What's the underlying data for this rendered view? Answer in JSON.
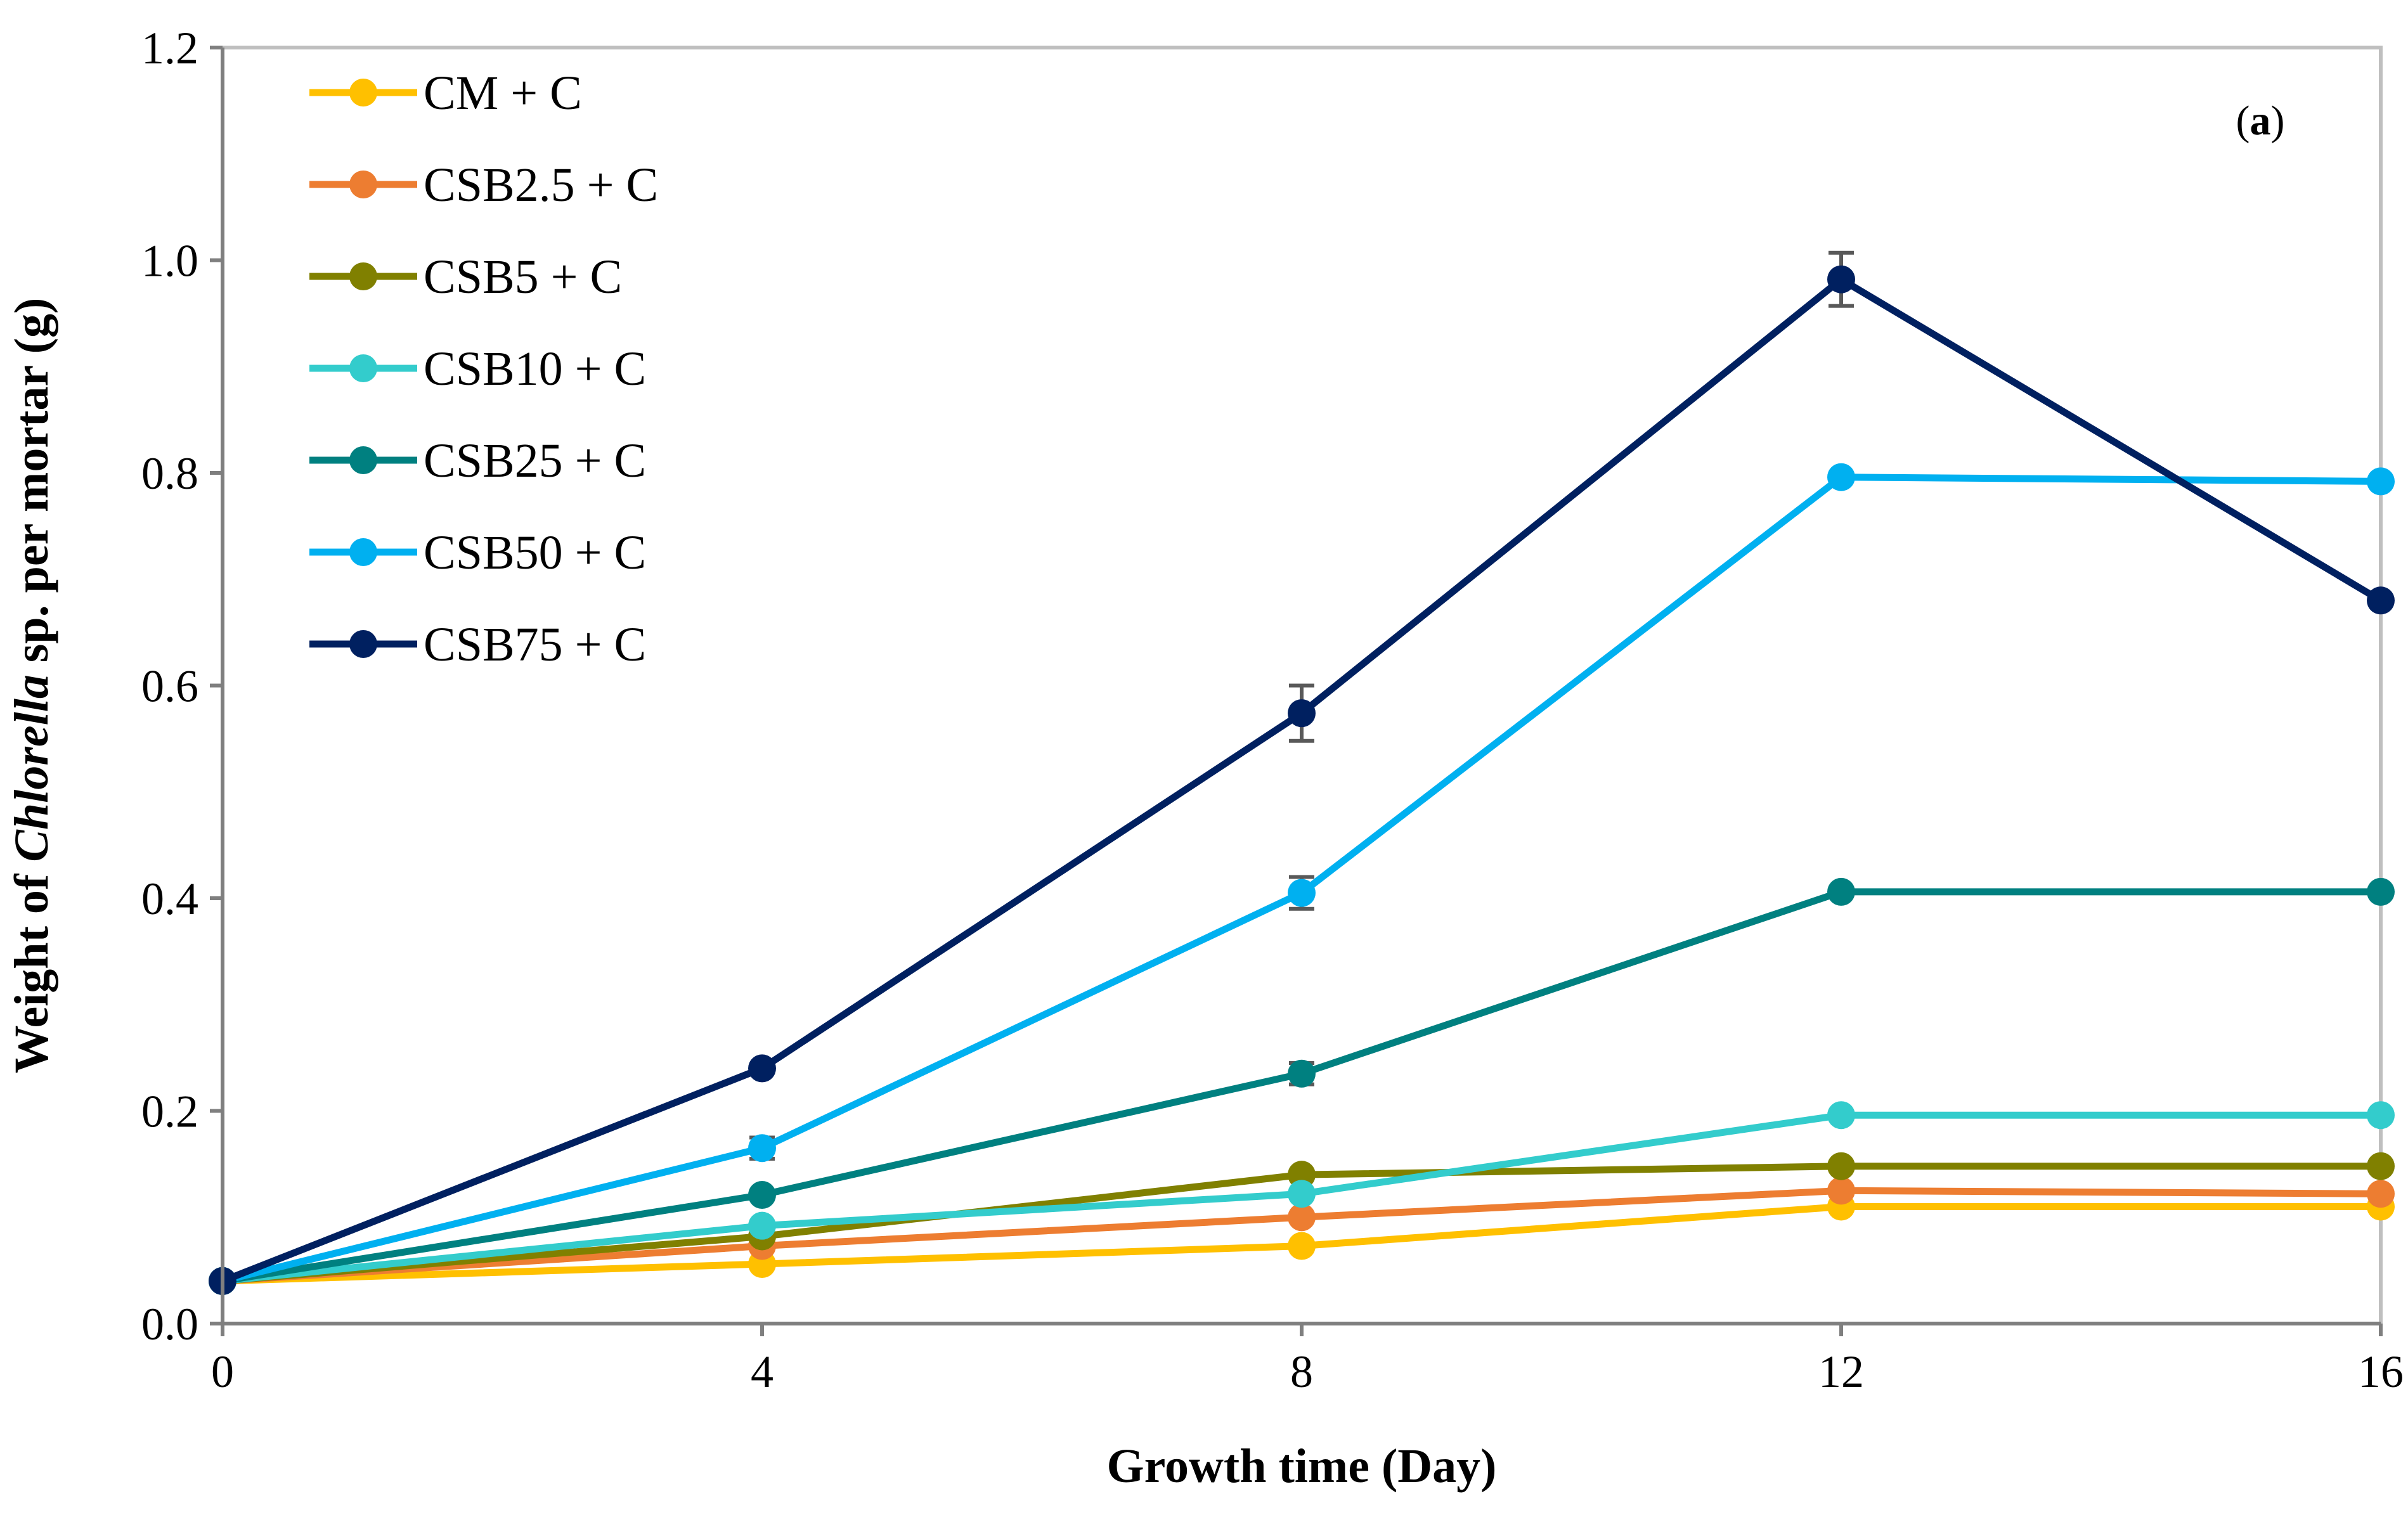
{
  "chart_data": {
    "type": "line",
    "panel_label": "a",
    "xlabel": "Growth time (Day)",
    "ylabel": {
      "prefix": "Weight of ",
      "italic": "Chlorella",
      "suffix": " sp. per mortar (g)"
    },
    "x": [
      0,
      4,
      8,
      12,
      16
    ],
    "xlim": [
      0,
      16
    ],
    "xticks": [
      "0",
      "4",
      "8",
      "12",
      "16"
    ],
    "ylim": [
      0,
      1.2
    ],
    "yticks": [
      "0.0",
      "0.2",
      "0.4",
      "0.6",
      "0.8",
      "1.0",
      "1.2"
    ],
    "grid": false,
    "legend_position": "top-left",
    "series": [
      {
        "name": "CM + C",
        "color": "#FFC000",
        "values": [
          0.04,
          0.056,
          0.073,
          0.11,
          0.11
        ]
      },
      {
        "name": "CSB2.5 + C",
        "color": "#ED7D31",
        "values": [
          0.04,
          0.073,
          0.1,
          0.125,
          0.122
        ]
      },
      {
        "name": "CSB5 + C",
        "color": "#808000",
        "values": [
          0.04,
          0.082,
          0.14,
          0.148,
          0.148
        ]
      },
      {
        "name": "CSB10 + C",
        "color": "#33CCCC",
        "values": [
          0.04,
          0.092,
          0.122,
          0.196,
          0.196
        ]
      },
      {
        "name": "CSB25 + C",
        "color": "#008080",
        "values": [
          0.04,
          0.121,
          0.235,
          0.406,
          0.406
        ]
      },
      {
        "name": "CSB50 + C",
        "color": "#00B0F0",
        "values": [
          0.04,
          0.165,
          0.405,
          0.796,
          0.792
        ]
      },
      {
        "name": "CSB75 + C",
        "color": "#002060",
        "values": [
          0.04,
          0.24,
          0.574,
          0.982,
          0.68
        ]
      }
    ],
    "error_bars": [
      {
        "series": "CSB75 + C",
        "x": 8,
        "value": 0.574,
        "error": 0.026
      },
      {
        "series": "CSB75 + C",
        "x": 12,
        "value": 0.982,
        "error": 0.025
      },
      {
        "series": "CSB50 + C",
        "x": 8,
        "value": 0.405,
        "error": 0.015
      },
      {
        "series": "CSB50 + C",
        "x": 4,
        "value": 0.165,
        "error": 0.01
      },
      {
        "series": "CSB25 + C",
        "x": 8,
        "value": 0.235,
        "error": 0.01
      }
    ]
  }
}
